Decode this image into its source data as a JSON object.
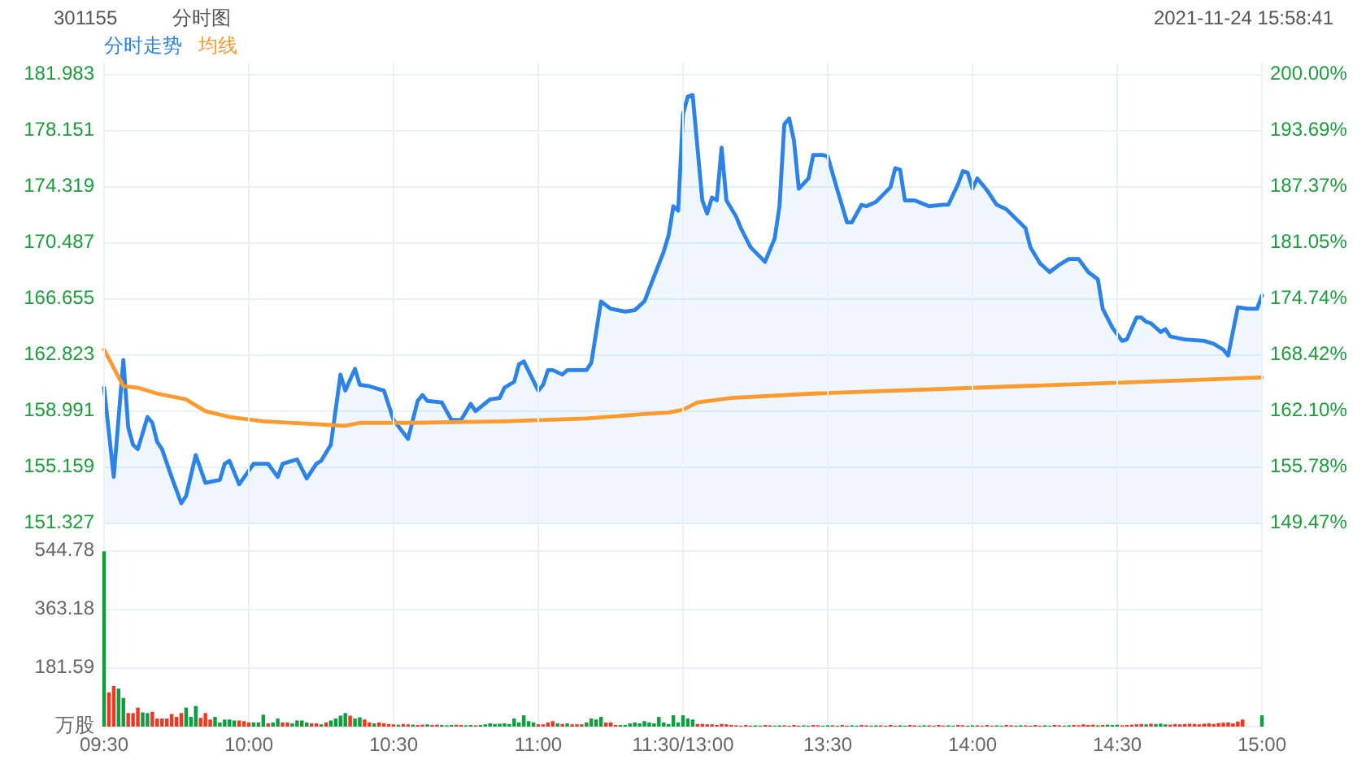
{
  "chart_data": [
    {
      "type": "line",
      "title": "分时图",
      "annotations": [
        "301155",
        "2021-11-24 15:58:41"
      ],
      "legend": "top left",
      "grid": "y",
      "tick_labels": "y",
      "categories": [
        null,
        null,
        null,
        null,
        null,
        null,
        null,
        null,
        null,
        null,
        null,
        null,
        null,
        null,
        null,
        null,
        null,
        null,
        null,
        null,
        null,
        null,
        null,
        null,
        null,
        null,
        null,
        null,
        null,
        null,
        null,
        null,
        null,
        null,
        null,
        null,
        null,
        null,
        null,
        null,
        null,
        null,
        null,
        null,
        null,
        null,
        null,
        null,
        null,
        null,
        null,
        null,
        null,
        null,
        null,
        null,
        null,
        null,
        null,
        null,
        null,
        null,
        null,
        null,
        null,
        null,
        null,
        null,
        null,
        null,
        null,
        null,
        null,
        null,
        null,
        null,
        null,
        null,
        null,
        null,
        null,
        null,
        null,
        null,
        null,
        null,
        null,
        null,
        null,
        null,
        null,
        null,
        null,
        null,
        null,
        null,
        null,
        null,
        null,
        null,
        null,
        null,
        null,
        null,
        null,
        null,
        null,
        null,
        null,
        null,
        null,
        null,
        null,
        null,
        null,
        null,
        null,
        null,
        null,
        null,
        null,
        null,
        null,
        null,
        null,
        null,
        null,
        null,
        null,
        null,
        null,
        null,
        null,
        null,
        null,
        null,
        null,
        null,
        null,
        null,
        null,
        null,
        null,
        null,
        null,
        null,
        null,
        null,
        null,
        null,
        null,
        null,
        null,
        null,
        null,
        null,
        null,
        null,
        null,
        null,
        null,
        null,
        null,
        null,
        null,
        null,
        null,
        null,
        null,
        null,
        null,
        null,
        null,
        null,
        null,
        null,
        null,
        null,
        null,
        null,
        null,
        null,
        null,
        null,
        null,
        null,
        null,
        null,
        null,
        null,
        null,
        null,
        null,
        null,
        null,
        null,
        null,
        null,
        null,
        null,
        null,
        null,
        null,
        null,
        null,
        null,
        null,
        null,
        null,
        null,
        null,
        null,
        null,
        null,
        null,
        null,
        null,
        null,
        null,
        null,
        null,
        null,
        null,
        null,
        null,
        null,
        null,
        null,
        null,
        null,
        null,
        null,
        null,
        null,
        null,
        null,
        null,
        null,
        null,
        null,
        null
      ],
      "ylim": [
        151.327,
        181.983
      ],
      "yticks": [
        151.327,
        155.159,
        158.991,
        162.823,
        166.655,
        170.487,
        174.319,
        178.151,
        181.983
      ],
      "y2lim": [
        149.47,
        200
      ],
      "y2ticks": [
        {
          "value": 149.47,
          "label": "149.47%"
        },
        {
          "value": 155.78,
          "label": "155.78%"
        },
        {
          "value": 162.1,
          "label": "162.10%"
        },
        {
          "value": 168.42,
          "label": "168.42%"
        },
        {
          "value": 174.74,
          "label": "174.74%"
        },
        {
          "value": 181.05,
          "label": "181.05%"
        },
        {
          "value": 187.37,
          "label": "187.37%"
        },
        {
          "value": 193.69,
          "label": "193.69%"
        },
        {
          "value": 200,
          "label": "200.00%"
        }
      ],
      "series": [
        {
          "name": "分时走势",
          "type": "area",
          "color": "#2b83ea",
          "values": [
            160.6,
            null,
            154.5,
            null,
            162.5,
            157.9,
            156.7,
            156.4,
            null,
            158.6,
            158.2,
            156.9,
            156.4,
            null,
            154.5,
            null,
            152.7,
            153.2,
            null,
            156.0,
            null,
            154.1,
            null,
            null,
            154.3,
            155.4,
            155.6,
            null,
            154.0,
            null,
            null,
            155.4,
            null,
            null,
            155.4,
            null,
            154.5,
            155.4,
            null,
            null,
            155.7,
            null,
            154.4,
            null,
            155.4,
            155.6,
            null,
            156.7,
            null,
            161.5,
            160.4,
            null,
            161.9,
            160.8,
            null,
            160.7,
            null,
            null,
            160.4,
            null,
            158.4,
            null,
            null,
            157.1,
            null,
            159.7,
            160.1,
            159.7,
            null,
            null,
            159.6,
            null,
            158.4,
            null,
            158.4,
            null,
            159.5,
            159.0,
            null,
            null,
            159.8,
            null,
            159.9,
            160.6,
            null,
            161.0,
            162.2,
            162.4,
            null,
            null,
            160.4,
            160.8,
            161.8,
            161.8,
            null,
            161.5,
            161.8,
            null,
            null,
            null,
            161.8,
            162.3,
            null,
            166.5,
            null,
            166.0,
            null,
            null,
            165.8,
            null,
            165.9,
            null,
            166.5,
            null,
            168.2,
            null,
            169.9,
            171.0,
            173.0,
            172.7,
            179.3,
            180.5,
            180.6,
            null,
            173.4,
            172.5,
            173.6,
            173.4,
            177.0,
            173.4,
            null,
            172.3,
            171.5,
            null,
            170.2,
            null,
            null,
            169.2,
            null,
            170.8,
            173.0,
            178.6,
            179.0,
            177.5,
            174.2,
            null,
            174.9,
            176.5,
            null,
            176.5,
            176.4,
            null,
            174.1,
            null,
            171.9,
            171.9,
            null,
            173.1,
            173.0,
            null,
            173.3,
            null,
            null,
            174.3,
            175.6,
            175.5,
            173.4,
            null,
            173.4,
            null,
            null,
            173.0,
            null,
            null,
            173.1,
            173.1,
            null,
            174.5,
            175.4,
            175.3,
            174.2,
            174.9,
            null,
            174.1,
            null,
            173.1,
            null,
            172.8,
            null,
            null,
            null,
            171.5,
            170.2,
            null,
            169.1,
            null,
            168.5,
            null,
            169.0,
            null,
            169.4,
            null,
            169.4,
            null,
            168.5,
            null,
            168.0,
            166.0,
            null,
            164.7,
            null,
            163.8,
            163.9,
            null,
            165.4,
            165.4,
            165.1,
            165.0,
            null,
            164.4,
            164.6,
            164.1,
            null,
            null,
            163.9,
            null,
            null,
            null,
            163.8,
            null,
            163.6,
            null,
            163.2,
            162.8,
            null,
            166.1,
            null,
            166.0,
            null,
            166.0,
            166.9
          ]
        },
        {
          "name": "均线",
          "type": "line",
          "color": "#ff9a2e",
          "values": [
            163.2,
            null,
            null,
            null,
            160.7,
            null,
            null,
            160.6,
            null,
            null,
            null,
            160.2,
            null,
            null,
            null,
            null,
            null,
            159.8,
            null,
            null,
            null,
            159.0,
            null,
            null,
            null,
            null,
            158.6,
            null,
            null,
            null,
            null,
            null,
            null,
            158.3,
            null,
            null,
            null,
            null,
            null,
            null,
            null,
            null,
            null,
            null,
            null,
            null,
            null,
            null,
            null,
            null,
            158.0,
            null,
            null,
            158.2,
            null,
            null,
            null,
            null,
            null,
            null,
            null,
            null,
            null,
            null,
            158.2,
            null,
            null,
            null,
            null,
            null,
            null,
            null,
            null,
            null,
            null,
            null,
            null,
            null,
            null,
            null,
            null,
            null,
            null,
            158.3,
            null,
            null,
            null,
            null,
            null,
            null,
            null,
            null,
            null,
            null,
            null,
            null,
            null,
            null,
            null,
            null,
            158.5,
            null,
            null,
            null,
            null,
            null,
            null,
            null,
            null,
            null,
            null,
            null,
            158.8,
            null,
            null,
            null,
            null,
            158.9,
            null,
            null,
            159.1,
            null,
            null,
            159.6,
            null,
            null,
            null,
            null,
            null,
            null,
            159.9,
            null,
            null,
            null,
            null,
            null,
            null,
            null,
            null,
            null,
            null,
            null,
            null,
            null,
            null,
            null,
            null,
            160.2,
            null,
            null,
            null,
            null,
            null,
            null,
            null,
            null,
            null,
            null,
            null,
            null,
            null,
            null,
            null,
            null,
            null,
            null,
            null,
            null,
            null,
            null,
            null,
            null,
            null,
            null,
            null,
            null,
            null,
            null,
            null,
            null,
            null,
            160.6,
            null,
            null,
            null,
            null,
            null,
            null,
            null,
            null,
            null,
            null,
            null,
            null,
            null,
            null,
            null,
            null,
            null,
            null,
            null,
            null,
            null,
            null,
            null,
            null,
            null,
            null,
            null,
            null,
            null,
            null,
            null,
            null,
            null,
            161.0,
            null,
            null,
            null,
            null,
            null,
            null,
            null,
            null,
            null,
            null,
            null,
            null,
            null,
            null,
            null,
            null,
            null,
            null,
            null,
            null,
            null,
            null,
            null,
            null,
            161.3
          ]
        }
      ]
    },
    {
      "type": "bar",
      "grid": true,
      "categories": [
        "09:30",
        null,
        null,
        null,
        null,
        null,
        null,
        null,
        null,
        null,
        null,
        null,
        null,
        null,
        null,
        null,
        null,
        null,
        null,
        null,
        null,
        null,
        null,
        null,
        null,
        null,
        null,
        null,
        null,
        null,
        "10:00",
        null,
        null,
        null,
        null,
        null,
        null,
        null,
        null,
        null,
        null,
        null,
        null,
        null,
        null,
        null,
        null,
        null,
        null,
        null,
        null,
        null,
        null,
        null,
        null,
        null,
        null,
        null,
        null,
        null,
        "10:30",
        null,
        null,
        null,
        null,
        null,
        null,
        null,
        null,
        null,
        null,
        null,
        null,
        null,
        null,
        null,
        null,
        null,
        null,
        null,
        null,
        null,
        null,
        null,
        null,
        null,
        null,
        null,
        null,
        null,
        "11:00",
        null,
        null,
        null,
        null,
        null,
        null,
        null,
        null,
        null,
        null,
        null,
        null,
        null,
        null,
        null,
        null,
        null,
        null,
        null,
        null,
        null,
        null,
        null,
        null,
        null,
        null,
        null,
        null,
        null,
        "11:30/13:00",
        null,
        null,
        null,
        null,
        null,
        null,
        null,
        null,
        null,
        null,
        null,
        null,
        null,
        null,
        null,
        null,
        null,
        null,
        null,
        null,
        null,
        null,
        null,
        null,
        null,
        null,
        null,
        null,
        null,
        "13:30",
        null,
        null,
        null,
        null,
        null,
        null,
        null,
        null,
        null,
        null,
        null,
        null,
        null,
        null,
        null,
        null,
        null,
        null,
        null,
        null,
        null,
        null,
        null,
        null,
        null,
        null,
        null,
        null,
        null,
        "14:00",
        null,
        null,
        null,
        null,
        null,
        null,
        null,
        null,
        null,
        null,
        null,
        null,
        null,
        null,
        null,
        null,
        null,
        null,
        null,
        null,
        null,
        null,
        null,
        null,
        null,
        null,
        null,
        null,
        null,
        "14:30",
        null,
        null,
        null,
        null,
        null,
        null,
        null,
        null,
        null,
        null,
        null,
        null,
        null,
        null,
        null,
        null,
        null,
        null,
        null,
        null,
        null,
        null,
        null,
        null,
        null,
        null,
        null,
        null,
        null,
        "15:00"
      ],
      "ylim": [
        0,
        544.78
      ],
      "yticks": [
        {
          "value": 0,
          "label": "万股"
        },
        181.59,
        363.18,
        544.78
      ],
      "values": [
        544,
        106,
        126,
        118,
        89,
        42,
        42,
        59,
        44,
        42,
        46,
        25,
        25,
        25,
        39,
        30,
        42,
        59,
        30,
        64,
        27,
        42,
        22,
        30,
        13,
        22,
        22,
        19,
        19,
        17,
        13,
        13,
        13,
        37,
        10,
        13,
        25,
        13,
        13,
        10,
        19,
        19,
        13,
        10,
        10,
        7,
        13,
        19,
        25,
        34,
        42,
        34,
        25,
        29,
        22,
        13,
        10,
        13,
        10,
        8,
        7,
        6,
        8,
        7,
        6,
        5,
        6,
        7,
        5,
        6,
        5,
        4,
        5,
        6,
        5,
        4,
        5,
        4,
        5,
        7,
        10,
        8,
        9,
        10,
        8,
        25,
        13,
        35,
        17,
        13,
        7,
        7,
        13,
        17,
        10,
        8,
        10,
        7,
        7,
        7,
        13,
        25,
        22,
        30,
        13,
        13,
        5,
        5,
        5,
        10,
        13,
        10,
        17,
        13,
        10,
        30,
        13,
        8,
        35,
        13,
        35,
        25,
        22,
        8,
        8,
        7,
        7,
        5,
        8,
        7,
        5,
        4,
        3,
        5,
        3,
        4,
        3,
        5,
        4,
        3,
        4,
        4,
        3,
        5,
        3,
        4,
        3,
        5,
        4,
        3,
        4,
        4,
        3,
        5,
        3,
        4,
        3,
        5,
        4,
        3,
        4,
        4,
        3,
        5,
        3,
        4,
        3,
        5,
        4,
        3,
        4,
        4,
        3,
        5,
        3,
        4,
        3,
        5,
        4,
        3,
        4,
        4,
        3,
        5,
        3,
        4,
        3,
        5,
        4,
        3,
        4,
        4,
        3,
        5,
        3,
        4,
        3,
        5,
        4,
        3,
        4,
        5,
        4,
        7,
        5,
        6,
        4,
        5,
        6,
        5,
        6,
        4,
        5,
        6,
        7,
        8,
        7,
        9,
        8,
        9,
        7,
        6,
        8,
        7,
        8,
        9,
        8,
        7,
        9,
        10,
        8,
        11,
        12,
        13,
        10,
        16,
        22,
        0,
        0,
        0,
        35
      ],
      "colors": [
        "#0d9e3d",
        "#f4361e",
        "#f4361e",
        "#0d9e3d",
        "#0d9e3d",
        "#f4361e",
        "#f4361e",
        "#f4361e",
        "#0d9e3d",
        "#0d9e3d",
        "#f4361e",
        "#f4361e",
        "#f4361e",
        "#f4361e",
        "#f4361e",
        "#f4361e",
        "#f4361e",
        "#0d9e3d",
        "#0d9e3d",
        "#0d9e3d",
        "#f4361e",
        "#f4361e",
        "#f4361e",
        "#0d9e3d",
        "#0d9e3d",
        "#0d9e3d",
        "#0d9e3d",
        "#0d9e3d",
        "#f4361e",
        "#f4361e",
        "#f4361e",
        "#0d9e3d",
        "#0d9e3d",
        "#0d9e3d",
        "#f4361e",
        "#0d9e3d",
        "#0d9e3d",
        "#f4361e",
        "#f4361e",
        "#0d9e3d",
        "#0d9e3d",
        "#0d9e3d",
        "#0d9e3d",
        "#f4361e",
        "#f4361e",
        "#0d9e3d",
        "#f4361e",
        "#0d9e3d",
        "#0d9e3d",
        "#0d9e3d",
        "#0d9e3d",
        "#f4361e",
        "#0d9e3d",
        "#0d9e3d",
        "#f4361e",
        "#f4361e",
        "#0d9e3d",
        "#f4361e",
        "#f4361e",
        "#f4361e",
        "#f4361e",
        "#0d9e3d",
        "#f4361e",
        "#f4361e",
        "#0d9e3d",
        "#f4361e",
        "#f4361e",
        "#0d9e3d",
        "#f4361e",
        "#f4361e",
        "#0d9e3d",
        "#0d9e3d",
        "#0d9e3d",
        "#f4361e",
        "#f4361e",
        "#0d9e3d",
        "#0d9e3d",
        "#f4361e",
        "#0d9e3d",
        "#0d9e3d",
        "#0d9e3d",
        "#0d9e3d",
        "#0d9e3d",
        "#0d9e3d",
        "#0d9e3d",
        "#0d9e3d",
        "#0d9e3d",
        "#0d9e3d",
        "#0d9e3d",
        "#0d9e3d",
        "#f4361e",
        "#f4361e",
        "#f4361e",
        "#f4361e",
        "#0d9e3d",
        "#f4361e",
        "#0d9e3d",
        "#f4361e",
        "#f4361e",
        "#f4361e",
        "#0d9e3d",
        "#0d9e3d",
        "#0d9e3d",
        "#0d9e3d",
        "#f4361e",
        "#f4361e",
        "#f4361e",
        "#0d9e3d",
        "#0d9e3d",
        "#0d9e3d",
        "#0d9e3d",
        "#0d9e3d",
        "#0d9e3d",
        "#0d9e3d",
        "#0d9e3d",
        "#0d9e3d",
        "#0d9e3d",
        "#0d9e3d",
        "#0d9e3d",
        "#0d9e3d",
        "#0d9e3d",
        "#0d9e3d",
        "#0d9e3d",
        "#f4361e",
        "#f4361e",
        "#f4361e",
        "#f4361e",
        "#f4361e",
        "#f4361e",
        "#f4361e",
        "#f4361e",
        "#f4361e",
        "#0d9e3d",
        "#f4361e",
        "#f4361e",
        "#0d9e3d",
        "#0d9e3d",
        "#f4361e",
        "#f4361e",
        "#0d9e3d",
        "#0d9e3d",
        "#f4361e",
        "#0d9e3d",
        "#f4361e",
        "#f4361e",
        "#0d9e3d",
        "#0d9e3d",
        "#f4361e",
        "#f4361e",
        "#0d9e3d",
        "#0d9e3d",
        "#f4361e",
        "#0d9e3d",
        "#f4361e",
        "#f4361e",
        "#0d9e3d",
        "#0d9e3d",
        "#f4361e",
        "#f4361e",
        "#0d9e3d",
        "#0d9e3d",
        "#f4361e",
        "#0d9e3d",
        "#f4361e",
        "#f4361e",
        "#0d9e3d",
        "#0d9e3d",
        "#f4361e",
        "#f4361e",
        "#0d9e3d",
        "#0d9e3d",
        "#f4361e",
        "#0d9e3d",
        "#f4361e",
        "#f4361e",
        "#0d9e3d",
        "#0d9e3d",
        "#f4361e",
        "#f4361e",
        "#0d9e3d",
        "#0d9e3d",
        "#f4361e",
        "#0d9e3d",
        "#f4361e",
        "#f4361e",
        "#0d9e3d",
        "#0d9e3d",
        "#f4361e",
        "#f4361e",
        "#0d9e3d",
        "#0d9e3d",
        "#f4361e",
        "#0d9e3d",
        "#f4361e",
        "#f4361e",
        "#0d9e3d",
        "#0d9e3d",
        "#f4361e",
        "#f4361e",
        "#0d9e3d",
        "#0d9e3d",
        "#f4361e",
        "#f4361e",
        "#f4361e",
        "#f4361e",
        "#f4361e",
        "#0d9e3d",
        "#f4361e",
        "#0d9e3d",
        "#0d9e3d",
        "#0d9e3d",
        "#f4361e",
        "#f4361e",
        "#f4361e",
        "#f4361e",
        "#f4361e",
        "#0d9e3d",
        "#f4361e",
        "#0d9e3d",
        "#0d9e3d",
        "#0d9e3d",
        "#f4361e",
        "#f4361e",
        "#f4361e",
        "#f4361e",
        "#f4361e",
        "#f4361e",
        "#f4361e",
        "#f4361e",
        "#f4361e",
        "#f4361e",
        "#f4361e",
        "#f4361e",
        "#f4361e",
        "#f4361e",
        "#f4361e",
        "#f4361e",
        "#0d9e3d",
        "#0d9e3d",
        "#0d9e3d",
        "#0d9e3d"
      ]
    }
  ]
}
